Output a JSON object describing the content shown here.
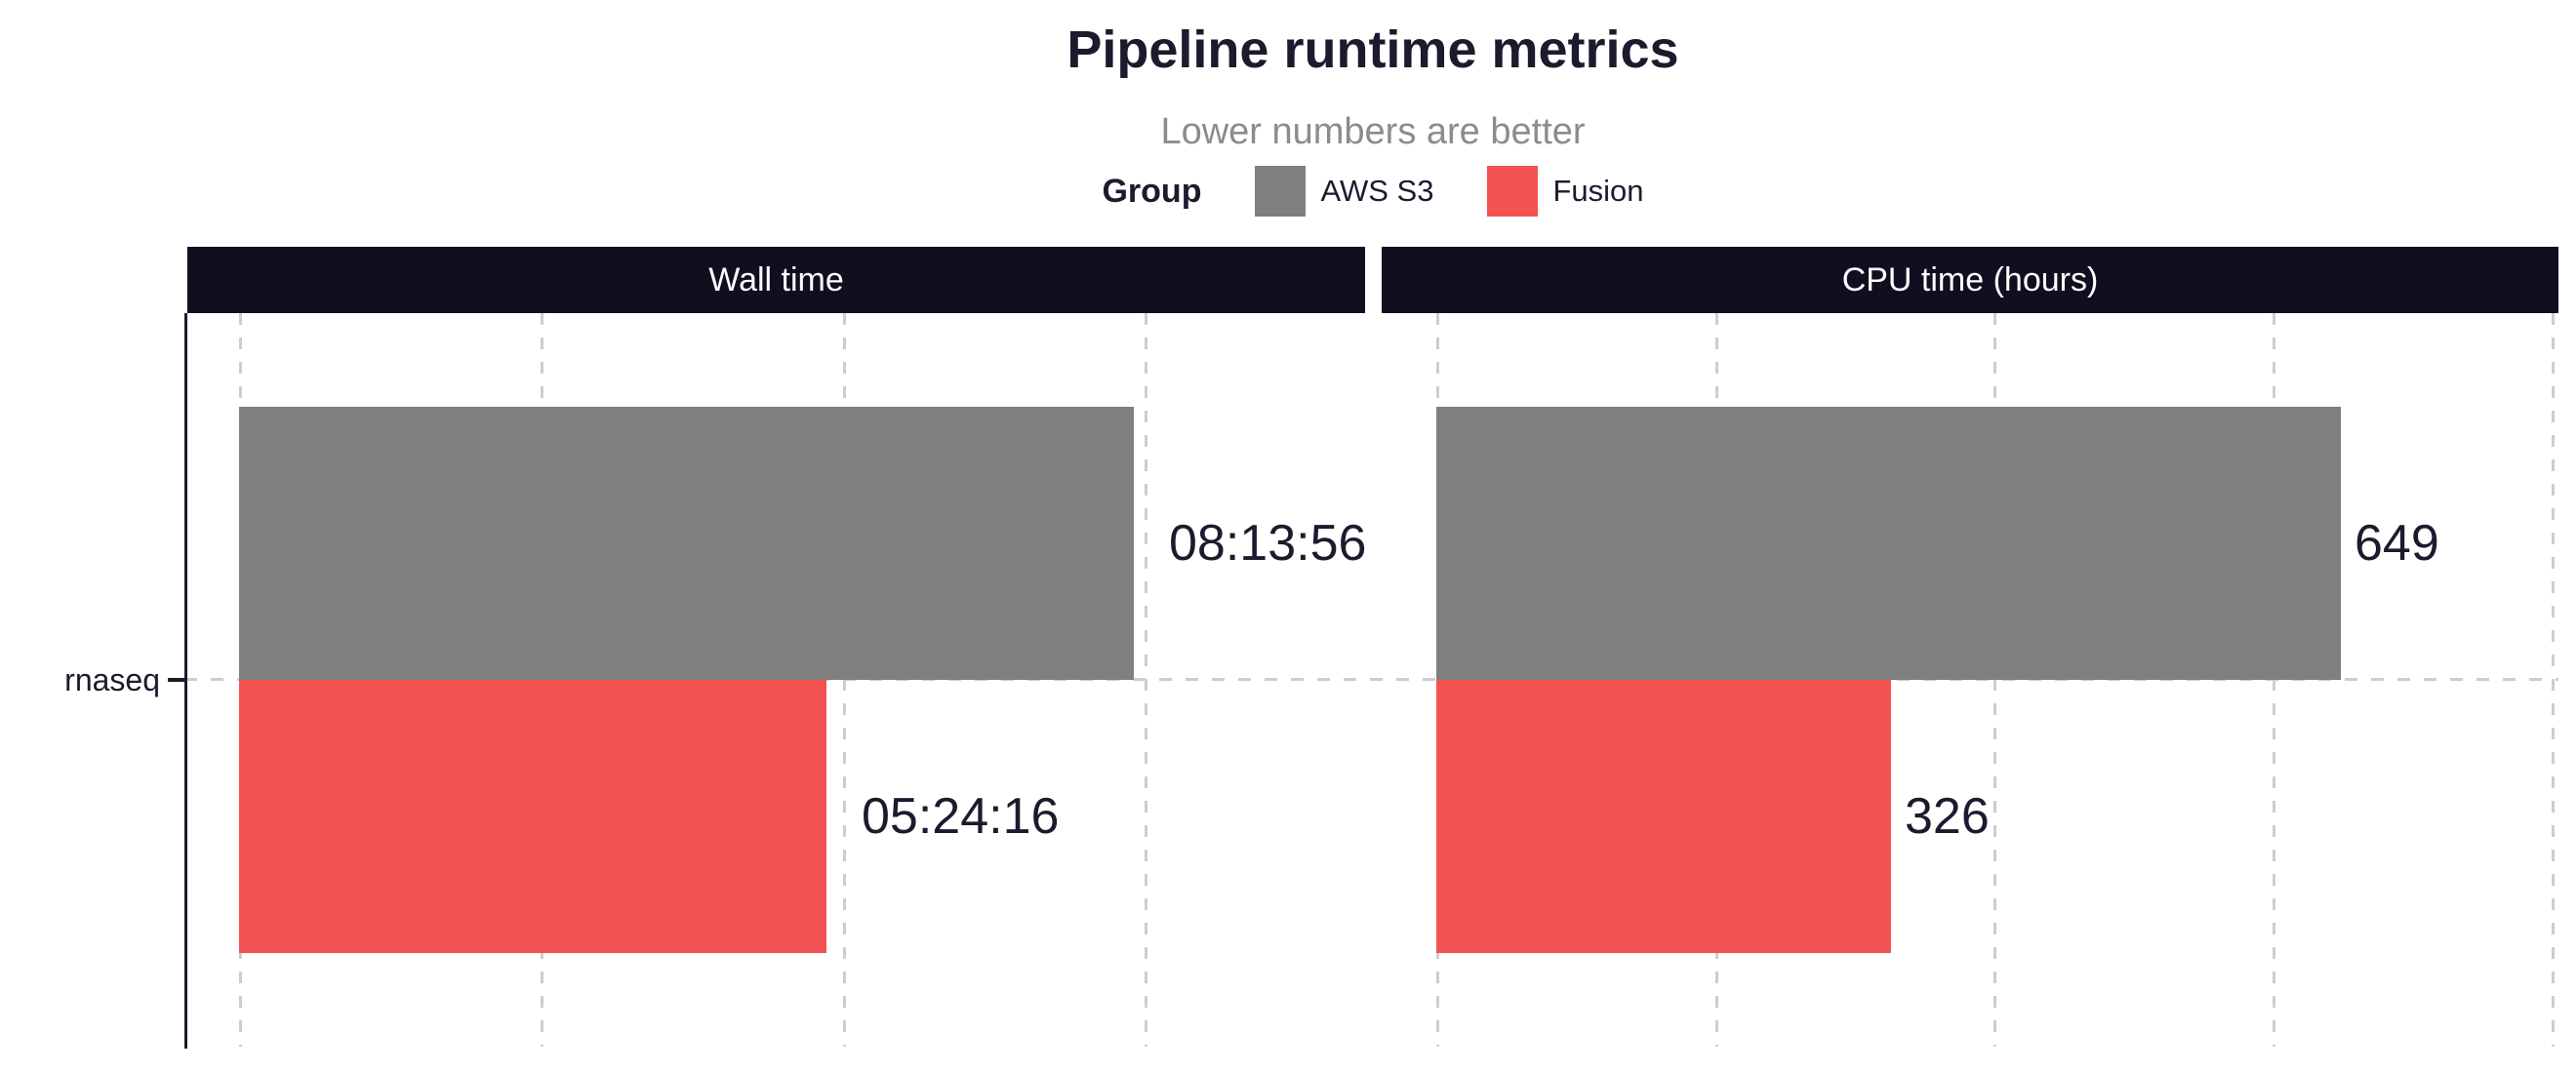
{
  "title": "Pipeline runtime metrics",
  "subtitle": "Lower numbers are better",
  "legend": {
    "title": "Group",
    "items": [
      {
        "label": "AWS S3",
        "color": "#7F7F7F"
      },
      {
        "label": "Fusion",
        "color": "#F35252"
      }
    ]
  },
  "colors": {
    "bar_aws_s3": "#7F7F7F",
    "bar_fusion": "#F35252",
    "facet_header_bg": "#120D1F",
    "facet_header_text": "#FFFFFF",
    "title_text": "#1D1A2E",
    "subtitle_text": "#8C8C8C",
    "gridline": "#CDCDCD",
    "axis": "#1D1A2E"
  },
  "chart_data": {
    "type": "bar",
    "orientation": "horizontal",
    "title": "Pipeline runtime metrics",
    "subtitle": "Lower numbers are better",
    "legend_position": "top",
    "grid": "dashed",
    "categories": [
      "rnaseq"
    ],
    "facets": [
      {
        "title": "Wall time",
        "unit": "hh:mm:ss",
        "axis_max": 37300,
        "gridline_values": [
          0,
          10000,
          20000,
          30000
        ],
        "series": [
          {
            "group": "AWS S3",
            "value": 29636,
            "label": "08:13:56"
          },
          {
            "group": "Fusion",
            "value": 19456,
            "label": "05:24:16"
          }
        ]
      },
      {
        "title": "CPU time (hours)",
        "unit": "hours",
        "axis_max": 805,
        "gridline_values": [
          0,
          200,
          400,
          600,
          800
        ],
        "series": [
          {
            "group": "AWS S3",
            "value": 649,
            "label": "649"
          },
          {
            "group": "Fusion",
            "value": 326,
            "label": "326"
          }
        ]
      }
    ]
  }
}
